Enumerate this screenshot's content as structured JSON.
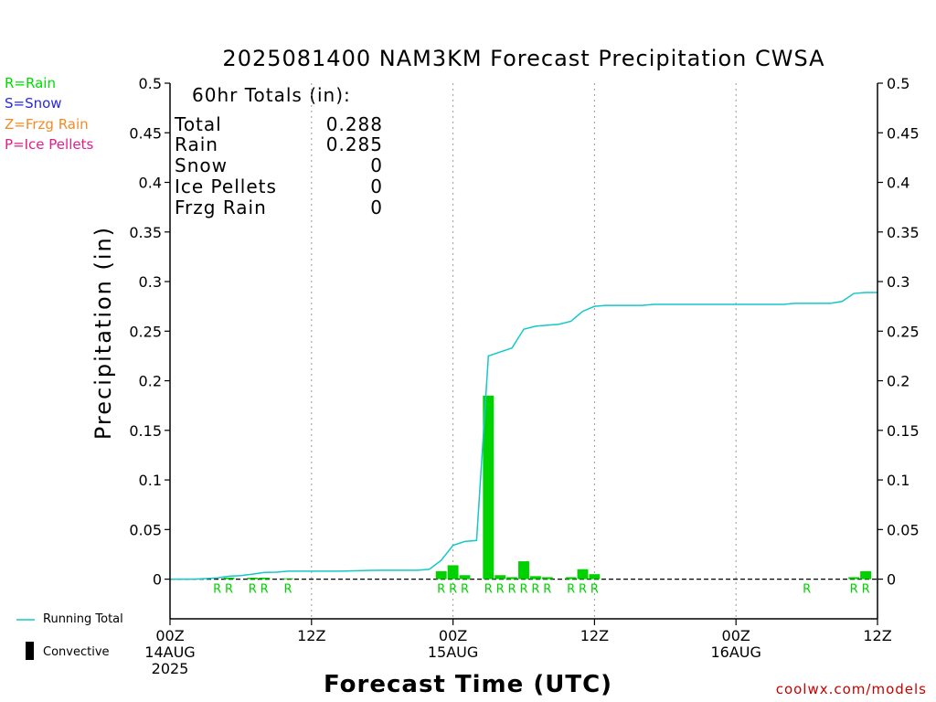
{
  "chart_data": {
    "type": "bar",
    "title": "2025081400 NAM3KM Forecast Precipitation CWSA",
    "xlabel": "Forecast Time (UTC)",
    "ylabel": "Precipitation (in)",
    "ylim": [
      0,
      0.5
    ],
    "ymin_plot": -0.04,
    "yticks": [
      0,
      0.05,
      0.1,
      0.15,
      0.2,
      0.25,
      0.3,
      0.35,
      0.4,
      0.45,
      0.5
    ],
    "ytick_labels": [
      "0",
      "0.05",
      "0.1",
      "0.15",
      "0.2",
      "0.25",
      "0.3",
      "0.35",
      "0.4",
      "0.45",
      "0.5"
    ],
    "xlim_hours": [
      0,
      60
    ],
    "xticks": [
      {
        "hour": 0,
        "lines": [
          "00Z",
          "14AUG",
          "2025"
        ]
      },
      {
        "hour": 12,
        "lines": [
          "12Z"
        ]
      },
      {
        "hour": 24,
        "lines": [
          "00Z",
          "15AUG"
        ]
      },
      {
        "hour": 36,
        "lines": [
          "12Z"
        ]
      },
      {
        "hour": 48,
        "lines": [
          "00Z",
          "16AUG"
        ]
      },
      {
        "hour": 60,
        "lines": [
          "12Z"
        ]
      }
    ],
    "grid": "dotted vertical at 12-hour ticks",
    "hourly_precip": [
      {
        "hour": 4,
        "value": 0.0,
        "type": "R"
      },
      {
        "hour": 5,
        "value": 0.0015,
        "type": "R"
      },
      {
        "hour": 7,
        "value": 0.0015,
        "type": "R"
      },
      {
        "hour": 8,
        "value": 0.0015,
        "type": "R"
      },
      {
        "hour": 10,
        "value": 0.0008,
        "type": "R"
      },
      {
        "hour": 23,
        "value": 0.008,
        "type": "R"
      },
      {
        "hour": 24,
        "value": 0.014,
        "type": "R"
      },
      {
        "hour": 25,
        "value": 0.004,
        "type": "R"
      },
      {
        "hour": 27,
        "value": 0.185,
        "type": "R"
      },
      {
        "hour": 28,
        "value": 0.004,
        "type": "R"
      },
      {
        "hour": 29,
        "value": 0.002,
        "type": "R"
      },
      {
        "hour": 30,
        "value": 0.018,
        "type": "R"
      },
      {
        "hour": 31,
        "value": 0.003,
        "type": "R"
      },
      {
        "hour": 32,
        "value": 0.002,
        "type": "R"
      },
      {
        "hour": 34,
        "value": 0.002,
        "type": "R"
      },
      {
        "hour": 35,
        "value": 0.01,
        "type": "R"
      },
      {
        "hour": 36,
        "value": 0.005,
        "type": "R"
      },
      {
        "hour": 54,
        "value": 0.0,
        "type": "R"
      },
      {
        "hour": 58,
        "value": 0.002,
        "type": "R"
      },
      {
        "hour": 59,
        "value": 0.008,
        "type": "R"
      }
    ],
    "running_total": {
      "name": "Running Total",
      "points": [
        [
          0,
          0
        ],
        [
          1,
          0
        ],
        [
          2,
          0
        ],
        [
          3,
          0.0005
        ],
        [
          4,
          0.0012
        ],
        [
          5,
          0.003
        ],
        [
          6,
          0.0035
        ],
        [
          7,
          0.005
        ],
        [
          8,
          0.0068
        ],
        [
          9,
          0.007
        ],
        [
          10,
          0.008
        ],
        [
          11,
          0.008
        ],
        [
          12,
          0.008
        ],
        [
          13,
          0.008
        ],
        [
          14,
          0.008
        ],
        [
          15,
          0.0082
        ],
        [
          16,
          0.0085
        ],
        [
          17,
          0.0088
        ],
        [
          18,
          0.009
        ],
        [
          19,
          0.009
        ],
        [
          20,
          0.009
        ],
        [
          21,
          0.009
        ],
        [
          22,
          0.01
        ],
        [
          23,
          0.019
        ],
        [
          24,
          0.034
        ],
        [
          25,
          0.038
        ],
        [
          26,
          0.039
        ],
        [
          27,
          0.225
        ],
        [
          28,
          0.229
        ],
        [
          29,
          0.233
        ],
        [
          30,
          0.252
        ],
        [
          31,
          0.255
        ],
        [
          32,
          0.256
        ],
        [
          33,
          0.257
        ],
        [
          34,
          0.26
        ],
        [
          35,
          0.27
        ],
        [
          36,
          0.275
        ],
        [
          37,
          0.276
        ],
        [
          40,
          0.276
        ],
        [
          41,
          0.277
        ],
        [
          52,
          0.277
        ],
        [
          53,
          0.278
        ],
        [
          56,
          0.278
        ],
        [
          57,
          0.28
        ],
        [
          58,
          0.288
        ],
        [
          59,
          0.289
        ],
        [
          60,
          0.289
        ]
      ],
      "color": "#14c8c8"
    },
    "bar_color": "#00d200",
    "type_label_color": "#00d200"
  },
  "totals": {
    "header": "60hr Totals (in):",
    "rows": [
      {
        "label": "Total",
        "value": "0.288"
      },
      {
        "label": "Rain",
        "value": "0.285"
      },
      {
        "label": "Snow",
        "value": "0"
      },
      {
        "label": "Ice Pellets",
        "value": "0"
      },
      {
        "label": "Frzg Rain",
        "value": "0"
      }
    ]
  },
  "type_legend": [
    {
      "text": "R=Rain",
      "color": "#00dc00"
    },
    {
      "text": "S=Snow",
      "color": "#2828e0"
    },
    {
      "text": "Z=Frzg Rain",
      "color": "#f08c28"
    },
    {
      "text": "P=Ice Pellets",
      "color": "#e01e8c"
    }
  ],
  "bottom_legend": {
    "running_total": "Running Total",
    "convective": "Convective"
  },
  "credit": "coolwx.com/models"
}
